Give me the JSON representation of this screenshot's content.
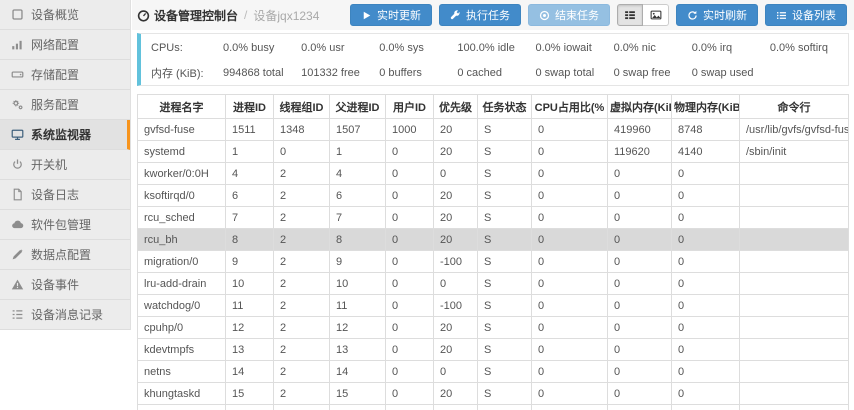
{
  "sidebar": {
    "items": [
      {
        "label": "设备概览",
        "icon": "overview-icon",
        "active": false
      },
      {
        "label": "网络配置",
        "icon": "network-icon",
        "active": false
      },
      {
        "label": "存储配置",
        "icon": "storage-icon",
        "active": false
      },
      {
        "label": "服务配置",
        "icon": "services-icon",
        "active": false
      },
      {
        "label": "系统监视器",
        "icon": "monitor-icon",
        "active": true
      },
      {
        "label": "开关机",
        "icon": "power-icon",
        "active": false
      },
      {
        "label": "设备日志",
        "icon": "log-icon",
        "active": false
      },
      {
        "label": "软件包管理",
        "icon": "package-cloud-icon",
        "active": false
      },
      {
        "label": "数据点配置",
        "icon": "datapoint-icon",
        "active": false
      },
      {
        "label": "设备事件",
        "icon": "event-warning-icon",
        "active": false
      },
      {
        "label": "设备消息记录",
        "icon": "message-list-icon",
        "active": false
      }
    ]
  },
  "breadcrumb": {
    "home": "设备管理控制台",
    "separator": "/",
    "current": "设备jqx1234"
  },
  "toolbar": {
    "update_label": "实时更新",
    "exec_label": "执行任务",
    "end_label": "结束任务",
    "refresh_label": "实时刷新",
    "devices_label": "设备列表"
  },
  "stats": {
    "cpu_label": "CPUs:",
    "cpu_values": [
      "0.0% busy",
      "0.0% usr",
      "0.0% sys",
      "100.0% idle",
      "0.0% iowait",
      "0.0% nic",
      "0.0% irq",
      "0.0% softirq"
    ],
    "mem_label": "内存 (KiB):",
    "mem_values": [
      "994868 total",
      "101332 free",
      "0 buffers",
      "0 cached",
      "0 swap total",
      "0 swap free",
      "0 swap used",
      ""
    ]
  },
  "table": {
    "headers": [
      "进程名字",
      "进程ID",
      "线程组ID",
      "父进程ID",
      "用户ID",
      "优先级",
      "任务状态",
      "CPU占用比(%",
      "虚拟内存(KiB)",
      "物理内存(KiB)",
      "命令行"
    ],
    "selected_row_index": 5,
    "rows": [
      [
        "gvfsd-fuse",
        "1511",
        "1348",
        "1507",
        "1000",
        "20",
        "S",
        "0",
        "419960",
        "8748",
        "/usr/lib/gvfs/gvfsd-fuse"
      ],
      [
        "systemd",
        "1",
        "0",
        "1",
        "0",
        "20",
        "S",
        "0",
        "119620",
        "4140",
        "/sbin/init"
      ],
      [
        "kworker/0:0H",
        "4",
        "2",
        "4",
        "0",
        "0",
        "S",
        "0",
        "0",
        "0",
        ""
      ],
      [
        "ksoftirqd/0",
        "6",
        "2",
        "6",
        "0",
        "20",
        "S",
        "0",
        "0",
        "0",
        ""
      ],
      [
        "rcu_sched",
        "7",
        "2",
        "7",
        "0",
        "20",
        "S",
        "0",
        "0",
        "0",
        ""
      ],
      [
        "rcu_bh",
        "8",
        "2",
        "8",
        "0",
        "20",
        "S",
        "0",
        "0",
        "0",
        ""
      ],
      [
        "migration/0",
        "9",
        "2",
        "9",
        "0",
        "-100",
        "S",
        "0",
        "0",
        "0",
        ""
      ],
      [
        "lru-add-drain",
        "10",
        "2",
        "10",
        "0",
        "0",
        "S",
        "0",
        "0",
        "0",
        ""
      ],
      [
        "watchdog/0",
        "11",
        "2",
        "11",
        "0",
        "-100",
        "S",
        "0",
        "0",
        "0",
        ""
      ],
      [
        "cpuhp/0",
        "12",
        "2",
        "12",
        "0",
        "20",
        "S",
        "0",
        "0",
        "0",
        ""
      ],
      [
        "kdevtmpfs",
        "13",
        "2",
        "13",
        "0",
        "20",
        "S",
        "0",
        "0",
        "0",
        ""
      ],
      [
        "netns",
        "14",
        "2",
        "14",
        "0",
        "0",
        "S",
        "0",
        "0",
        "0",
        ""
      ],
      [
        "khungtaskd",
        "15",
        "2",
        "15",
        "0",
        "20",
        "S",
        "0",
        "0",
        "0",
        ""
      ],
      [
        "",
        "",
        "",
        "",
        "",
        "",
        "",
        "",
        "",
        "",
        ""
      ]
    ]
  },
  "colors": {
    "accent_blue": "#428bca",
    "disabled_blue": "#95c0e2",
    "sidebar_active_bar": "#f7941d",
    "stats_left_border": "#62c2dc",
    "selected_row_bg": "#d9d9d9"
  }
}
